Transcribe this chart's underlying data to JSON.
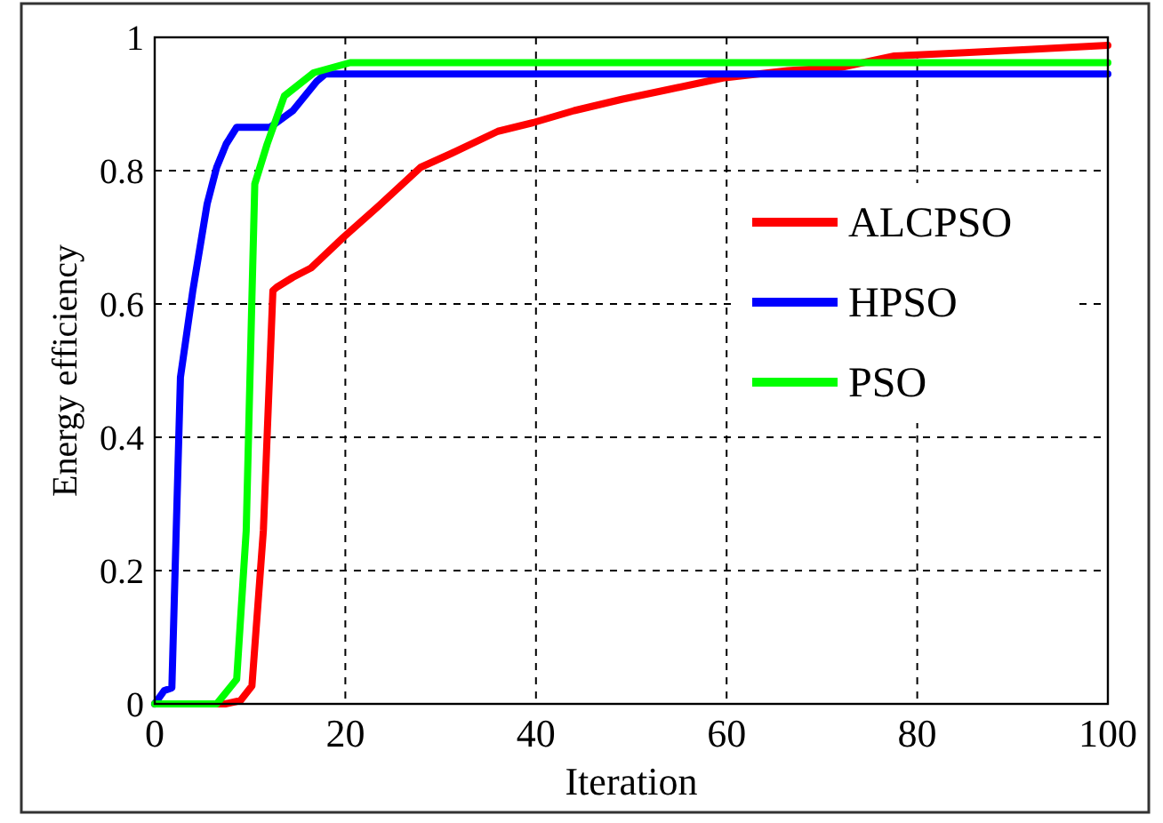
{
  "chart_data": {
    "type": "line",
    "xlabel": "Iteration",
    "ylabel": "Energy efficiency",
    "xlim": [
      0,
      100
    ],
    "ylim": [
      0,
      1
    ],
    "xticks": [
      0,
      20,
      40,
      60,
      80,
      100
    ],
    "yticks": [
      0,
      0.2,
      0.4,
      0.6,
      0.8,
      1
    ],
    "grid": true,
    "legend": "right",
    "marker": "none",
    "line_style": "solid",
    "series": [
      {
        "name": "ALCPSO",
        "color": "#ff0000",
        "x": [
          0,
          7.4,
          9,
          10.2,
          11.4,
          12.4,
          12.8,
          14.5,
          16.4,
          19.8,
          23.5,
          27.9,
          31,
          36,
          39.7,
          44,
          49,
          54,
          59.6,
          66.4,
          72,
          77.6,
          85,
          92,
          100
        ],
        "values": [
          0,
          0,
          0.005,
          0.027,
          0.26,
          0.62,
          0.625,
          0.64,
          0.654,
          0.7,
          0.747,
          0.805,
          0.825,
          0.859,
          0.872,
          0.89,
          0.907,
          0.922,
          0.939,
          0.95,
          0.955,
          0.972,
          0.977,
          0.982,
          0.988
        ]
      },
      {
        "name": "HPSO",
        "color": "#0000ff",
        "x": [
          0,
          1,
          1.8,
          2.7,
          4,
          5.5,
          6.5,
          7.5,
          8.6,
          12.1,
          14.5,
          17,
          17.9,
          100
        ],
        "values": [
          0,
          0.02,
          0.024,
          0.49,
          0.62,
          0.75,
          0.805,
          0.84,
          0.865,
          0.865,
          0.89,
          0.934,
          0.945,
          0.945
        ]
      },
      {
        "name": "PSO",
        "color": "#00ff00",
        "x": [
          0,
          6.5,
          8.6,
          9.6,
          10.2,
          10.5,
          11.8,
          13.6,
          16.7,
          20.5,
          100
        ],
        "values": [
          0,
          0,
          0.037,
          0.26,
          0.61,
          0.78,
          0.84,
          0.912,
          0.947,
          0.962,
          0.962
        ]
      }
    ]
  }
}
